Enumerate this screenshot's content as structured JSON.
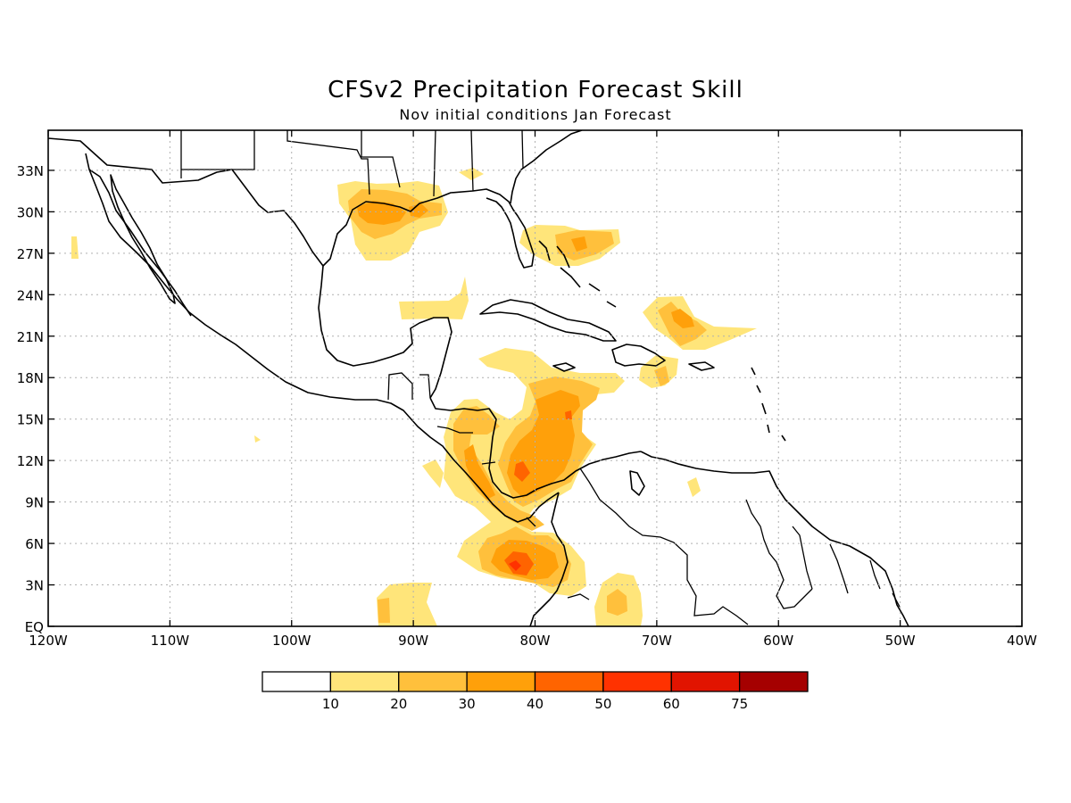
{
  "title": "CFSv2 Precipitation Forecast Skill",
  "subtitle": "Nov initial conditions  Jan Forecast",
  "map": {
    "lon_range": [
      -120,
      -40
    ],
    "lat_range": [
      0,
      35
    ],
    "lat_ticks": [
      {
        "value": 33,
        "label": "33N"
      },
      {
        "value": 30,
        "label": "30N"
      },
      {
        "value": 27,
        "label": "27N"
      },
      {
        "value": 24,
        "label": "24N"
      },
      {
        "value": 21,
        "label": "21N"
      },
      {
        "value": 18,
        "label": "18N"
      },
      {
        "value": 15,
        "label": "15N"
      },
      {
        "value": 12,
        "label": "12N"
      },
      {
        "value": 9,
        "label": "9N"
      },
      {
        "value": 6,
        "label": "6N"
      },
      {
        "value": 3,
        "label": "3N"
      },
      {
        "value": 0,
        "label": "EQ"
      }
    ],
    "lon_ticks": [
      {
        "value": -120,
        "label": "120W"
      },
      {
        "value": -110,
        "label": "110W"
      },
      {
        "value": -100,
        "label": "100W"
      },
      {
        "value": -90,
        "label": "90W"
      },
      {
        "value": -80,
        "label": "80W"
      },
      {
        "value": -70,
        "label": "70W"
      },
      {
        "value": -60,
        "label": "60W"
      },
      {
        "value": -50,
        "label": "50W"
      },
      {
        "value": -40,
        "label": "40W"
      }
    ],
    "grid": true
  },
  "colorbar": {
    "colors": [
      "#ffffff",
      "#ffe57a",
      "#ffc03c",
      "#ffa00a",
      "#ff6400",
      "#ff3200",
      "#e11400",
      "#a50000"
    ],
    "labels": [
      "10",
      "20",
      "30",
      "40",
      "50",
      "60",
      "75"
    ]
  }
}
